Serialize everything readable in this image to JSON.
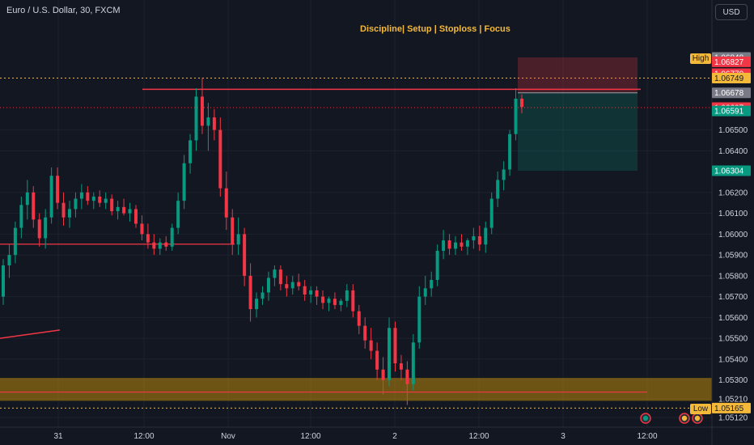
{
  "header": {
    "symbol_title": "Euro / U.S. Dollar, 30, FXCM"
  },
  "annotation": {
    "slogan": "Discipline| Setup | Stoploss | Focus"
  },
  "currency_button": {
    "label": "USD"
  },
  "high_label": "High",
  "low_label": "Low",
  "chart_data": {
    "type": "candlestick",
    "title": "Euro / U.S. Dollar, 30, FXCM",
    "ylim": [
      1.0507,
      1.0698
    ],
    "y_ticks": [
      "1.06500",
      "1.06400",
      "1.06200",
      "1.06100",
      "1.06000",
      "1.05900",
      "1.05800",
      "1.05700",
      "1.05600",
      "1.05500",
      "1.05400",
      "1.05300",
      "1.05210",
      "1.05120"
    ],
    "x_ticks": [
      "31",
      "12:00",
      "Nov",
      "12:00",
      "2",
      "12:00",
      "3",
      "12:00"
    ],
    "price_labels": [
      {
        "text": "1.06848",
        "value": 1.06848,
        "color": "#787b86"
      },
      {
        "text": "1.06827",
        "value": 1.06827,
        "color": "#f23645"
      },
      {
        "text": "1.06770",
        "value": 1.0677,
        "color": "#f23645"
      },
      {
        "text": "1.06749",
        "value": 1.06749,
        "color": "#f5b93a"
      },
      {
        "text": "1.06678",
        "value": 1.06678,
        "color": "#787b86"
      },
      {
        "text": "1.06607",
        "value": 1.06607,
        "color": "#f23645"
      },
      {
        "text": "1.06591",
        "value": 1.06591,
        "color": "#089981"
      },
      {
        "text": "1.06304",
        "value": 1.06304,
        "color": "#089981"
      },
      {
        "text": "1.05165",
        "value": 1.05165,
        "color": "#f5b93a"
      }
    ],
    "day_high": 1.06749,
    "day_low": 1.05165,
    "candles": [
      [
        1.057,
        1.0588,
        1.0566,
        1.0585
      ],
      [
        1.0585,
        1.0595,
        1.0579,
        1.059
      ],
      [
        1.059,
        1.0606,
        1.0586,
        1.0603
      ],
      [
        1.0603,
        1.0618,
        1.0598,
        1.0614
      ],
      [
        1.0614,
        1.0626,
        1.0607,
        1.062
      ],
      [
        1.062,
        1.0623,
        1.0603,
        1.0607
      ],
      [
        1.0607,
        1.061,
        1.0594,
        1.0598
      ],
      [
        1.0598,
        1.0612,
        1.0593,
        1.0608
      ],
      [
        1.0608,
        1.0632,
        1.0605,
        1.0628
      ],
      [
        1.0628,
        1.0632,
        1.0612,
        1.0615
      ],
      [
        1.0615,
        1.062,
        1.0604,
        1.0608
      ],
      [
        1.0608,
        1.0616,
        1.0603,
        1.0612
      ],
      [
        1.0612,
        1.062,
        1.0608,
        1.0617
      ],
      [
        1.0617,
        1.0624,
        1.0612,
        1.062
      ],
      [
        1.062,
        1.0623,
        1.0614,
        1.0616
      ],
      [
        1.0616,
        1.062,
        1.0612,
        1.0618
      ],
      [
        1.0618,
        1.0621,
        1.0613,
        1.0615
      ],
      [
        1.0615,
        1.062,
        1.0612,
        1.0617
      ],
      [
        1.0617,
        1.0619,
        1.0609,
        1.0611
      ],
      [
        1.0611,
        1.0616,
        1.0607,
        1.0613
      ],
      [
        1.0613,
        1.0617,
        1.0609,
        1.061
      ],
      [
        1.061,
        1.0615,
        1.0606,
        1.0612
      ],
      [
        1.0612,
        1.0614,
        1.0603,
        1.0605
      ],
      [
        1.0605,
        1.0609,
        1.0597,
        1.06
      ],
      [
        1.06,
        1.0605,
        1.0593,
        1.0596
      ],
      [
        1.0596,
        1.06,
        1.059,
        1.0593
      ],
      [
        1.0593,
        1.0598,
        1.059,
        1.0596
      ],
      [
        1.0596,
        1.0599,
        1.0592,
        1.0594
      ],
      [
        1.0594,
        1.0605,
        1.0592,
        1.0603
      ],
      [
        1.0603,
        1.062,
        1.06,
        1.0616
      ],
      [
        1.0616,
        1.0638,
        1.0612,
        1.0634
      ],
      [
        1.0634,
        1.0648,
        1.0629,
        1.0645
      ],
      [
        1.0645,
        1.067,
        1.064,
        1.0666
      ],
      [
        1.0666,
        1.0675,
        1.0648,
        1.0652
      ],
      [
        1.0652,
        1.0663,
        1.064,
        1.0656
      ],
      [
        1.0656,
        1.066,
        1.0645,
        1.065
      ],
      [
        1.065,
        1.0656,
        1.0618,
        1.0622
      ],
      [
        1.0622,
        1.063,
        1.0602,
        1.0608
      ],
      [
        1.0608,
        1.0612,
        1.059,
        1.0595
      ],
      [
        1.0595,
        1.0608,
        1.059,
        1.06
      ],
      [
        1.06,
        1.0603,
        1.0575,
        1.058
      ],
      [
        1.058,
        1.0586,
        1.0558,
        1.0564
      ],
      [
        1.0564,
        1.0572,
        1.056,
        1.0569
      ],
      [
        1.0569,
        1.0575,
        1.0566,
        1.0572
      ],
      [
        1.0572,
        1.0582,
        1.0568,
        1.0579
      ],
      [
        1.0579,
        1.0585,
        1.0575,
        1.0583
      ],
      [
        1.0583,
        1.0585,
        1.0573,
        1.0576
      ],
      [
        1.0576,
        1.058,
        1.057,
        1.0574
      ],
      [
        1.0574,
        1.058,
        1.0571,
        1.0577
      ],
      [
        1.0577,
        1.0581,
        1.0573,
        1.0575
      ],
      [
        1.0575,
        1.0578,
        1.0568,
        1.0571
      ],
      [
        1.0571,
        1.0575,
        1.0567,
        1.0573
      ],
      [
        1.0573,
        1.0575,
        1.0566,
        1.057
      ],
      [
        1.057,
        1.0573,
        1.0564,
        1.0567
      ],
      [
        1.0567,
        1.057,
        1.0563,
        1.0569
      ],
      [
        1.0569,
        1.0572,
        1.0564,
        1.0566
      ],
      [
        1.0566,
        1.0569,
        1.0563,
        1.0568
      ],
      [
        1.0568,
        1.0576,
        1.0565,
        1.0573
      ],
      [
        1.0573,
        1.0576,
        1.056,
        1.0563
      ],
      [
        1.0563,
        1.0566,
        1.0552,
        1.0556
      ],
      [
        1.0556,
        1.056,
        1.0545,
        1.0549
      ],
      [
        1.0549,
        1.0555,
        1.054,
        1.0544
      ],
      [
        1.0544,
        1.0548,
        1.053,
        1.0535
      ],
      [
        1.0535,
        1.0541,
        1.0523,
        1.053
      ],
      [
        1.053,
        1.056,
        1.0527,
        1.0555
      ],
      [
        1.0555,
        1.0558,
        1.0534,
        1.0538
      ],
      [
        1.0538,
        1.0542,
        1.053,
        1.0535
      ],
      [
        1.0535,
        1.0539,
        1.0518,
        1.0528
      ],
      [
        1.0528,
        1.0552,
        1.0525,
        1.0548
      ],
      [
        1.0548,
        1.0575,
        1.0545,
        1.057
      ],
      [
        1.057,
        1.058,
        1.0566,
        1.0574
      ],
      [
        1.0574,
        1.0582,
        1.057,
        1.0578
      ],
      [
        1.0578,
        1.0595,
        1.0575,
        1.0592
      ],
      [
        1.0592,
        1.0602,
        1.0588,
        1.0597
      ],
      [
        1.0597,
        1.06,
        1.059,
        1.0593
      ],
      [
        1.0593,
        1.0599,
        1.059,
        1.0596
      ],
      [
        1.0596,
        1.06,
        1.0592,
        1.0594
      ],
      [
        1.0594,
        1.0598,
        1.059,
        1.0597
      ],
      [
        1.0597,
        1.0603,
        1.0593,
        1.0599
      ],
      [
        1.0599,
        1.0604,
        1.0592,
        1.0595
      ],
      [
        1.0595,
        1.0606,
        1.0591,
        1.0603
      ],
      [
        1.0603,
        1.062,
        1.06,
        1.0617
      ],
      [
        1.0617,
        1.063,
        1.0613,
        1.0626
      ],
      [
        1.0626,
        1.0635,
        1.0621,
        1.0631
      ],
      [
        1.0631,
        1.065,
        1.0628,
        1.0648
      ],
      [
        1.0648,
        1.067,
        1.0645,
        1.0665
      ],
      [
        1.0665,
        1.0667,
        1.0658,
        1.0661
      ]
    ]
  }
}
